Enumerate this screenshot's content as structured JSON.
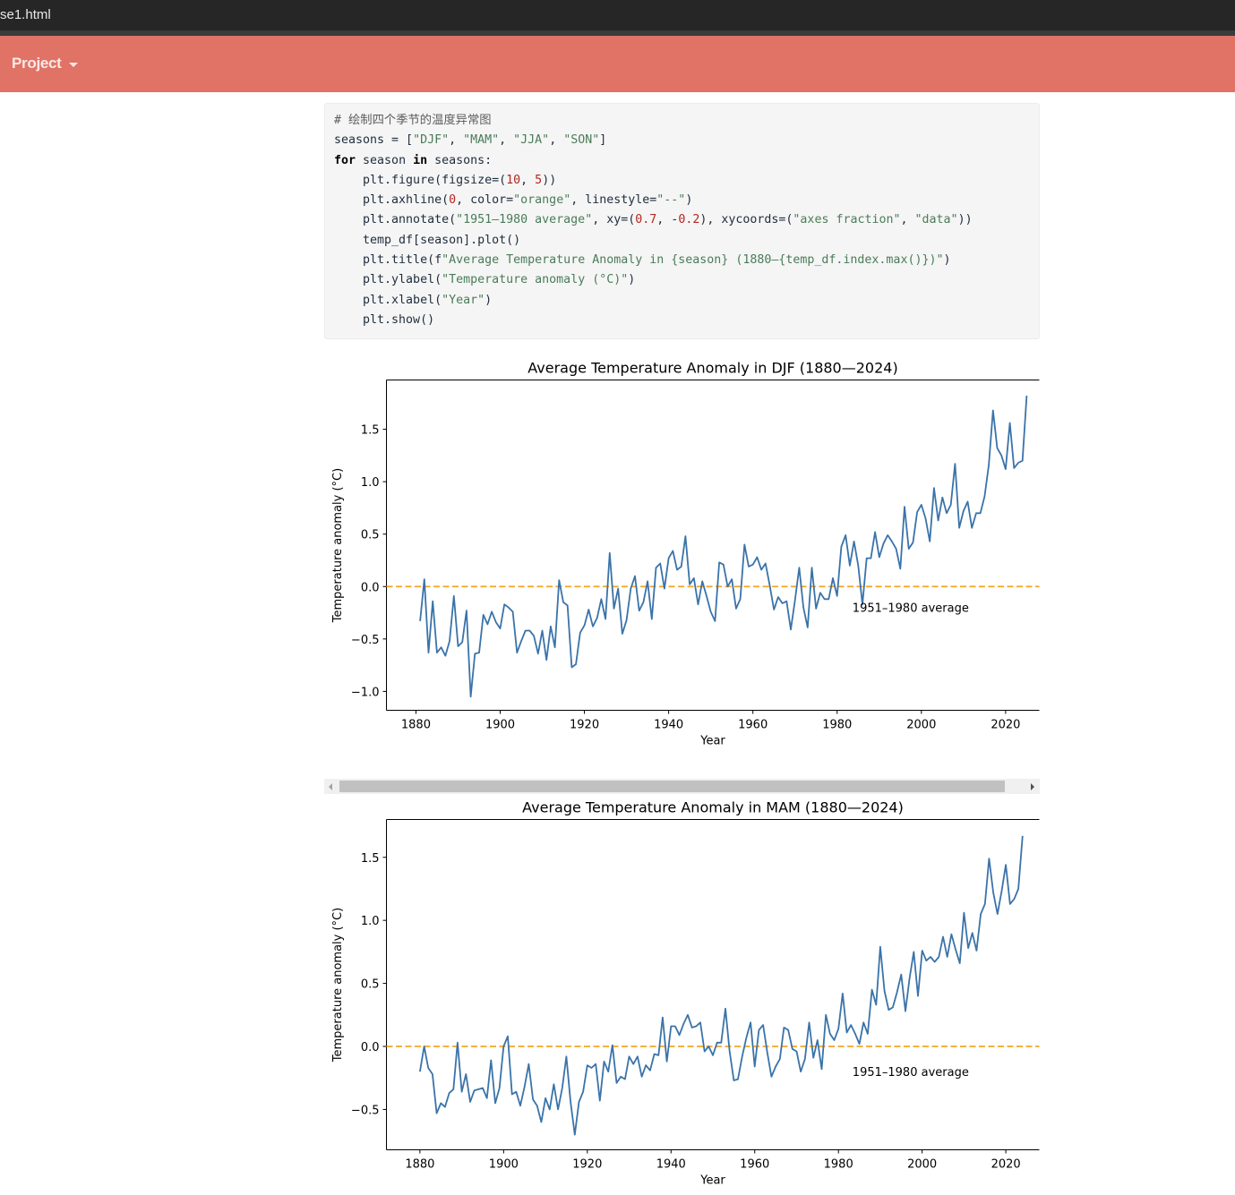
{
  "browser": {
    "tab_title": "se1.html"
  },
  "navbar": {
    "project_label": "Project"
  },
  "code": {
    "comment": "# 绘制四个季节的温度异常图",
    "lines": [
      "seasons = [\"DJF\", \"MAM\", \"JJA\", \"SON\"]",
      "for season in seasons:",
      "    plt.figure(figsize=(10, 5))",
      "    plt.axhline(0, color=\"orange\", linestyle=\"--\")",
      "    plt.annotate(\"1951–1980 average\", xy=(0.7, -0.2), xycoords=(\"axes fraction\", \"data\"))",
      "    temp_df[season].plot()",
      "    plt.title(f\"Average Temperature Anomaly in {season} (1880—{temp_df.index.max()})\")",
      "    plt.ylabel(\"Temperature anomaly (°C)\")",
      "    plt.xlabel(\"Year\")",
      "    plt.show()"
    ]
  },
  "colors": {
    "line": "#3a73a9",
    "baseline": "#f5a623",
    "navbar": "#e07366"
  },
  "chart_data": [
    {
      "type": "line",
      "title": "Average Temperature Anomaly in DJF (1880—2024)",
      "xlabel": "Year",
      "ylabel": "Temperature anomaly (°C)",
      "annotation": "1951–1980 average",
      "xlim": [
        1873,
        2028
      ],
      "ylim": [
        -1.18,
        1.97
      ],
      "xticks": [
        1880,
        1900,
        1920,
        1940,
        1960,
        1980,
        2000,
        2020
      ],
      "yticks": [
        -1.0,
        -0.5,
        0.0,
        0.5,
        1.0,
        1.5
      ],
      "ytick_labels": [
        "−1.0",
        "−0.5",
        "0.0",
        "0.5",
        "1.0",
        "1.5"
      ],
      "baseline": 0,
      "x_start": 1881,
      "x_end": 2024,
      "values": [
        -0.33,
        0.07,
        -0.63,
        -0.14,
        -0.63,
        -0.58,
        -0.66,
        -0.52,
        -0.09,
        -0.57,
        -0.53,
        -0.23,
        -1.05,
        -0.64,
        -0.63,
        -0.27,
        -0.36,
        -0.24,
        -0.34,
        -0.4,
        -0.17,
        -0.2,
        -0.24,
        -0.63,
        -0.52,
        -0.42,
        -0.42,
        -0.47,
        -0.64,
        -0.42,
        -0.7,
        -0.38,
        -0.58,
        0.06,
        -0.15,
        -0.18,
        -0.77,
        -0.74,
        -0.44,
        -0.37,
        -0.22,
        -0.38,
        -0.3,
        -0.12,
        -0.31,
        0.32,
        -0.21,
        -0.02,
        -0.45,
        -0.32,
        -0.02,
        0.1,
        -0.23,
        -0.15,
        0.05,
        -0.31,
        0.18,
        0.22,
        -0.02,
        0.27,
        0.34,
        0.16,
        0.19,
        0.48,
        0.02,
        0.08,
        -0.17,
        0.05,
        -0.09,
        -0.24,
        -0.33,
        0.23,
        0.21,
        0.0,
        0.07,
        -0.21,
        -0.12,
        0.4,
        0.19,
        0.21,
        0.28,
        0.16,
        0.22,
        0.01,
        -0.22,
        -0.1,
        -0.16,
        -0.14,
        -0.41,
        -0.13,
        0.18,
        -0.2,
        -0.39,
        0.18,
        -0.21,
        -0.06,
        -0.12,
        -0.12,
        0.08,
        -0.09,
        0.38,
        0.49,
        0.2,
        0.43,
        0.2,
        -0.17,
        0.27,
        0.27,
        0.52,
        0.28,
        0.41,
        0.49,
        0.43,
        0.36,
        0.17,
        0.76,
        0.36,
        0.42,
        0.71,
        0.78,
        0.65,
        0.43,
        0.94,
        0.63,
        0.85,
        0.7,
        0.78,
        1.17,
        0.56,
        0.72,
        0.81,
        0.56,
        0.7,
        0.7,
        0.86,
        1.16,
        1.68,
        1.32,
        1.25,
        1.12,
        1.56,
        1.13,
        1.18,
        1.2,
        1.82
      ]
    },
    {
      "type": "line",
      "title": "Average Temperature Anomaly in MAM (1880—2024)",
      "xlabel": "Year",
      "ylabel": "Temperature anomaly (°C)",
      "annotation": "1951–1980 average",
      "xlim": [
        1872,
        2028
      ],
      "ylim": [
        -0.82,
        1.8
      ],
      "xticks": [
        1880,
        1900,
        1920,
        1940,
        1960,
        1980,
        2000,
        2020
      ],
      "yticks": [
        -0.5,
        0.0,
        0.5,
        1.0,
        1.5
      ],
      "ytick_labels": [
        "−0.5",
        "0.0",
        "0.5",
        "1.0",
        "1.5"
      ],
      "baseline": 0,
      "x_start": 1880,
      "x_end": 2024,
      "values": [
        -0.2,
        0.0,
        -0.17,
        -0.22,
        -0.53,
        -0.45,
        -0.48,
        -0.37,
        -0.34,
        0.03,
        -0.36,
        -0.22,
        -0.44,
        -0.35,
        -0.34,
        -0.33,
        -0.41,
        -0.11,
        -0.45,
        -0.33,
        0.0,
        0.08,
        -0.38,
        -0.36,
        -0.47,
        -0.32,
        -0.14,
        -0.42,
        -0.47,
        -0.6,
        -0.41,
        -0.5,
        -0.3,
        -0.5,
        -0.33,
        -0.08,
        -0.44,
        -0.7,
        -0.44,
        -0.36,
        -0.15,
        -0.17,
        -0.14,
        -0.43,
        -0.12,
        -0.2,
        0.01,
        -0.29,
        -0.24,
        -0.26,
        -0.08,
        -0.14,
        -0.08,
        -0.24,
        -0.15,
        -0.19,
        -0.06,
        -0.07,
        0.23,
        -0.12,
        0.16,
        0.16,
        0.09,
        0.18,
        0.25,
        0.15,
        0.16,
        0.19,
        -0.04,
        0.0,
        -0.07,
        0.03,
        0.03,
        0.3,
        -0.04,
        -0.27,
        -0.26,
        -0.08,
        0.07,
        0.19,
        -0.16,
        0.13,
        0.17,
        -0.05,
        -0.24,
        -0.16,
        -0.1,
        0.15,
        0.13,
        -0.02,
        -0.04,
        -0.2,
        -0.1,
        0.19,
        -0.09,
        0.05,
        -0.18,
        0.25,
        0.1,
        0.05,
        0.14,
        0.42,
        0.11,
        0.17,
        0.1,
        0.02,
        0.19,
        0.1,
        0.45,
        0.33,
        0.79,
        0.44,
        0.29,
        0.31,
        0.43,
        0.57,
        0.28,
        0.54,
        0.75,
        0.4,
        0.76,
        0.68,
        0.71,
        0.67,
        0.71,
        0.87,
        0.71,
        0.89,
        0.77,
        0.66,
        1.06,
        0.78,
        0.9,
        0.76,
        1.05,
        1.13,
        1.49,
        1.22,
        1.05,
        1.23,
        1.44,
        1.13,
        1.17,
        1.25,
        1.67
      ]
    }
  ]
}
